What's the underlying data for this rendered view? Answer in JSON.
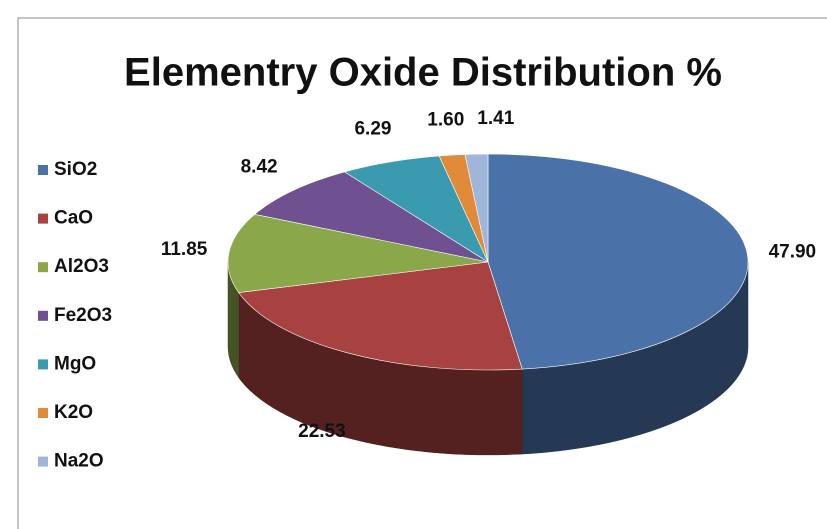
{
  "chart_data": {
    "type": "pie3d",
    "title": "Elementry Oxide Distribution %",
    "categories": [
      "SiO2",
      "CaO",
      "Al2O3",
      "Fe2O3",
      "MgO",
      "K2O",
      "Na2O"
    ],
    "values": [
      47.9,
      22.53,
      11.85,
      8.42,
      6.29,
      1.6,
      1.41
    ],
    "value_labels": [
      "47.90",
      "22.53",
      "11.85",
      "8.42",
      "6.29",
      "1.60",
      "1.41"
    ],
    "colors": [
      "#4a72a8",
      "#a84240",
      "#8aa74a",
      "#6f5090",
      "#3a9bb0",
      "#e08a3a",
      "#9fb5da"
    ],
    "legend": "left"
  }
}
